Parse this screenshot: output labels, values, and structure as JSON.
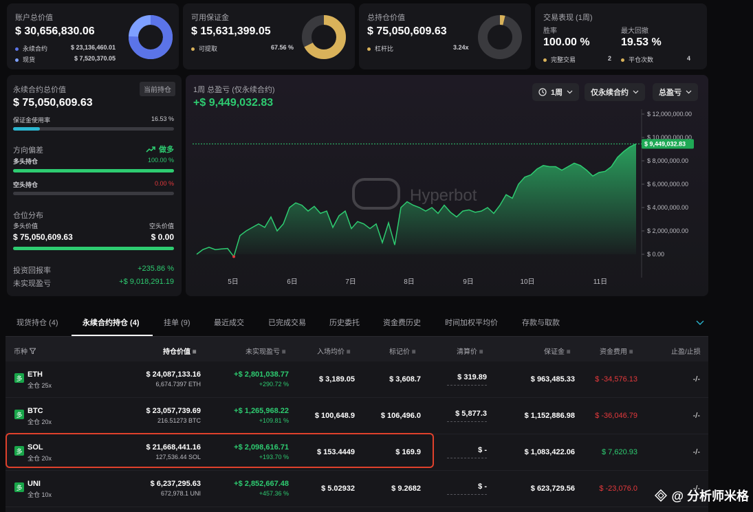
{
  "summary": {
    "account": {
      "label": "账户总价值",
      "value": "$ 30,656,830.06",
      "perp_label": "永续合约",
      "perp_value": "$ 23,136,460.01",
      "spot_label": "现货",
      "spot_value": "$ 7,520,370.05"
    },
    "margin": {
      "label": "可用保证金",
      "value": "$ 15,631,399.05",
      "withdraw_label": "可提取",
      "withdraw_value": "67.56 %"
    },
    "position": {
      "label": "总持仓价值",
      "value": "$ 75,050,609.63",
      "leverage_label": "杠杆比",
      "leverage_value": "3.24x"
    },
    "performance": {
      "label": "交易表现 (1周)",
      "winrate_label": "胜率",
      "winrate_value": "100.00 %",
      "drawdown_label": "最大回撤",
      "drawdown_value": "19.53 %",
      "completed_label": "完整交易",
      "completed_value": "2",
      "closed_label": "平仓次数",
      "closed_value": "4"
    }
  },
  "perp_panel": {
    "title": "永续合约总价值",
    "value": "$ 75,050,609.63",
    "tag": "当前持仓",
    "margin_usage_label": "保证金使用率",
    "margin_usage_value": "16.53 %",
    "margin_usage_fraction": 0.1653,
    "direction_label": "方向偏差",
    "direction_value": "做多",
    "long_label": "多头持仓",
    "long_value": "100.00 %",
    "long_fraction": 1.0,
    "short_label": "空头持仓",
    "short_value": "0.00 %",
    "short_fraction": 0.0,
    "dist_label": "仓位分布",
    "long_value_label": "多头价值",
    "short_value_label": "空头价值",
    "long_amount": "$ 75,050,609.63",
    "short_amount": "$ 0.00",
    "long_amount_fraction": 1.0,
    "roi_label": "投资回报率",
    "roi_value": "+235.86 %",
    "unrealized_label": "未实现盈亏",
    "unrealized_value": "+$ 9,018,291.19"
  },
  "pnl_chart": {
    "title": "1周 总盈亏 (仅永续合约)",
    "value": "+$ 9,449,032.83",
    "period_button": "1周",
    "scope_button": "仅永续合约",
    "metric_button": "总盈亏",
    "watermark": "Hyperbot"
  },
  "chart_data": {
    "type": "area",
    "title": "1周 总盈亏 (仅永续合约)",
    "x_ticks": [
      "5日",
      "6日",
      "7日",
      "8日",
      "9日",
      "10日",
      "11日"
    ],
    "y_ticks": [
      "$ 0.00",
      "$ 2,000,000.00",
      "$ 4,000,000.00",
      "$ 6,000,000.00",
      "$ 8,000,000.00",
      "$ 10,000,000.00",
      "$ 12,000,000.00"
    ],
    "ylim": [
      0,
      12000000
    ],
    "last_value_label": "$ 9,449,032.83",
    "series": [
      {
        "values": [
          0,
          400000,
          600000,
          400000,
          450000,
          500000,
          -200000,
          1600000,
          2000000,
          2300000,
          2600000,
          2300000,
          3200000,
          2000000,
          2600000,
          4000000,
          4400000,
          4200000,
          3700000,
          4100000,
          3500000,
          3700000,
          2300000,
          3300000,
          3700000,
          2200000,
          2800000,
          2600000,
          2200000,
          2600000,
          1000000,
          2700000,
          800000,
          4000000,
          4500000,
          4200000,
          4000000,
          3700000,
          4000000,
          3500000,
          4200000,
          3600000,
          3200000,
          3700000,
          3800000,
          3600000,
          3700000,
          4000000,
          3500000,
          4200000,
          5100000,
          4800000,
          6000000,
          6600000,
          6800000,
          7300000,
          7600000,
          7500000,
          7500000,
          7200000,
          7500000,
          7800000,
          7600000,
          7200000,
          6700000,
          7000000,
          7100000,
          7500000,
          8300000,
          8800000,
          9200000,
          9449032
        ]
      }
    ],
    "grid": false
  },
  "tabs": {
    "items": [
      "现货持仓 (4)",
      "永续合约持仓 (4)",
      "挂单 (9)",
      "最近成交",
      "已完成交易",
      "历史委托",
      "资金费历史",
      "时间加权平均价",
      "存款与取款"
    ],
    "active": 1
  },
  "table": {
    "headers": [
      "币种",
      "持仓价值",
      "未实现盈亏",
      "入场均价",
      "标记价",
      "清算价",
      "保证金",
      "资金费用",
      "止盈/止损"
    ],
    "badge": "多",
    "rows": [
      {
        "coin": "ETH",
        "mode": "全仓 25x",
        "value": "$ 24,087,133.16",
        "size": "6,674.7397 ETH",
        "pnl": "+$ 2,801,038.77",
        "pnl_pct": "+290.72 %",
        "entry": "$ 3,189.05",
        "mark": "$ 3,608.7",
        "liq": "$ 319.89",
        "margin": "$ 963,485.33",
        "funding": "$ -34,576.13",
        "tpsl": "-/-"
      },
      {
        "coin": "BTC",
        "mode": "全仓 20x",
        "value": "$ 23,057,739.69",
        "size": "216.51273 BTC",
        "pnl": "+$ 1,265,968.22",
        "pnl_pct": "+109.81 %",
        "entry": "$ 100,648.9",
        "mark": "$ 106,496.0",
        "liq": "$ 5,877.3",
        "margin": "$ 1,152,886.98",
        "funding": "$ -36,046.79",
        "tpsl": "-/-"
      },
      {
        "coin": "SOL",
        "mode": "全仓 20x",
        "value": "$ 21,668,441.16",
        "size": "127,536.44 SOL",
        "pnl": "+$ 2,098,616.71",
        "pnl_pct": "+193.70 %",
        "entry": "$ 153.4449",
        "mark": "$ 169.9",
        "liq": "$ -",
        "margin": "$ 1,083,422.06",
        "funding": "$ 7,620.93",
        "tpsl": "-/-"
      },
      {
        "coin": "UNI",
        "mode": "全仓 10x",
        "value": "$ 6,237,295.63",
        "size": "672,978.1 UNI",
        "pnl": "+$ 2,852,667.48",
        "pnl_pct": "+457.36 %",
        "entry": "$ 5.02932",
        "mark": "$ 9.2682",
        "liq": "$ -",
        "margin": "$ 623,729.56",
        "funding": "$ -23,076.0",
        "tpsl": "-/-"
      }
    ]
  },
  "footer_watermark": "@ 分析师米格",
  "colors": {
    "green": "#2ecc71",
    "red": "#e5393c",
    "donut_blue": "#5b74e8",
    "donut_gold": "#d9b25a",
    "highlight": "#e0412c"
  }
}
